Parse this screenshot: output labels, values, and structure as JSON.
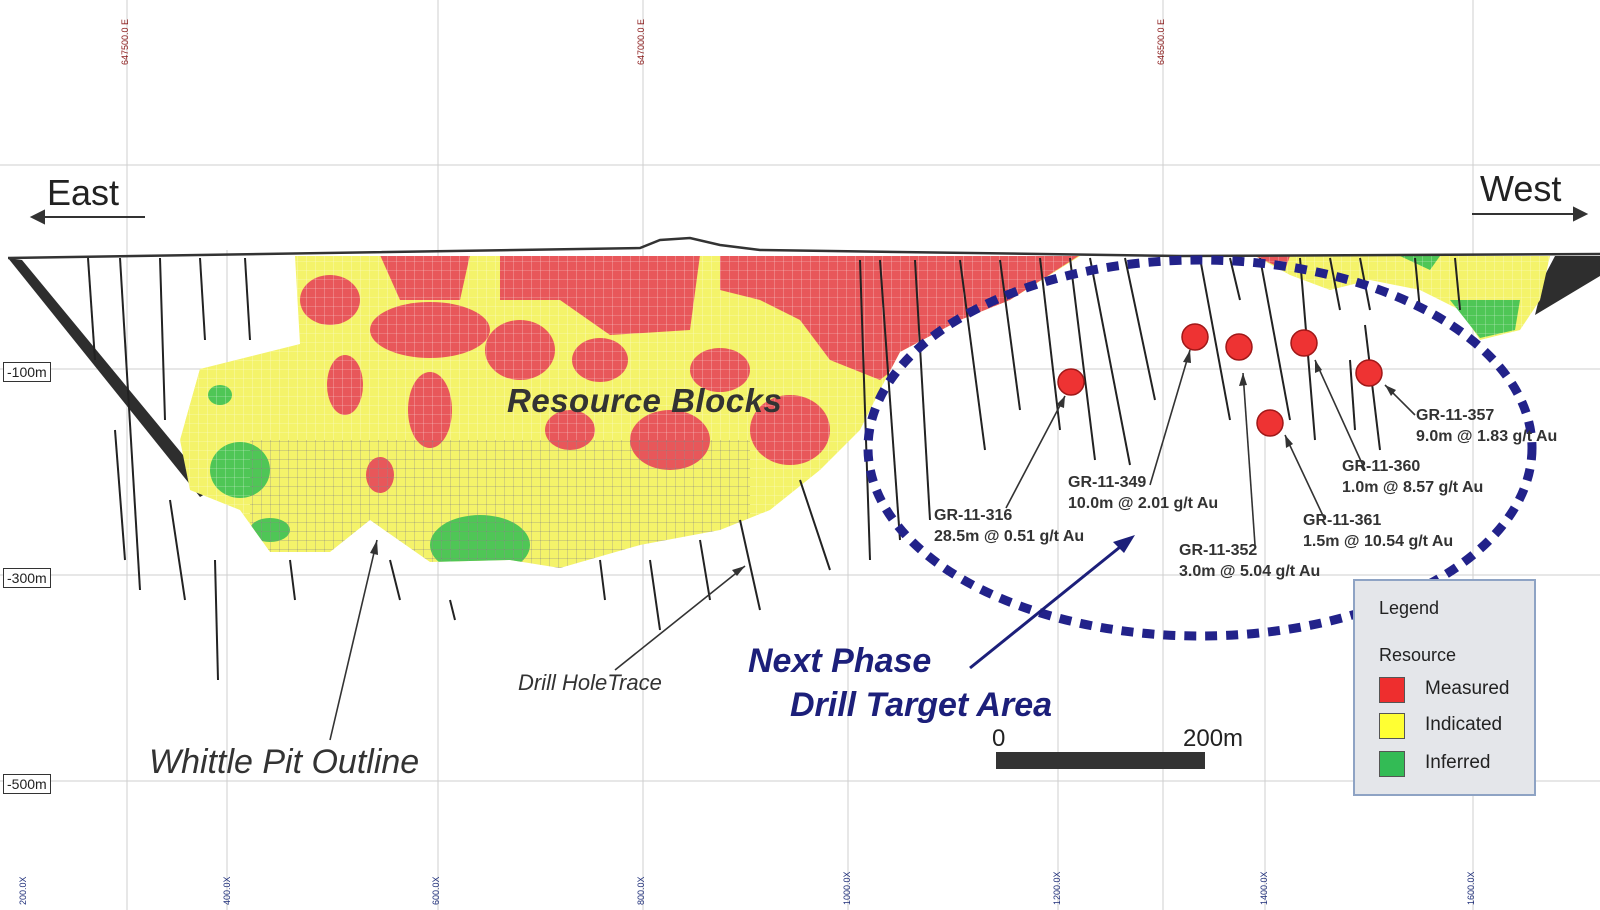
{
  "directions": {
    "east": "East",
    "west": "West"
  },
  "rl_labels": [
    "-100m",
    "-300m",
    "-500m"
  ],
  "easting_labels": [
    "647500.0 E",
    "647000.0 E",
    "646500.0 E"
  ],
  "distance_labels": [
    "200.0X",
    "400.0X",
    "600.0X",
    "800.0X",
    "1000.0X",
    "1200.0X",
    "1400.0X",
    "1600.0X"
  ],
  "titles": {
    "resource_blocks": "Resource Blocks",
    "whittle": "Whittle Pit Outline",
    "drill_trace": "Drill HoleTrace",
    "next_phase_line1": "Next Phase",
    "next_phase_line2": "Drill Target Area"
  },
  "annotations": [
    {
      "hole": "GR-11-316",
      "result": "28.5m @ 0.51 g/t Au"
    },
    {
      "hole": "GR-11-349",
      "result": "10.0m @ 2.01 g/t Au"
    },
    {
      "hole": "GR-11-352",
      "result": "3.0m @ 5.04 g/t Au"
    },
    {
      "hole": "GR-11-357",
      "result": "9.0m @ 1.83 g/t Au"
    },
    {
      "hole": "GR-11-360",
      "result": "1.0m @ 8.57 g/t Au"
    },
    {
      "hole": "GR-11-361",
      "result": "1.5m @ 10.54 g/t Au"
    }
  ],
  "scale_bar": {
    "start": "0",
    "end": "200m"
  },
  "legend": {
    "title": "Legend",
    "subtitle": "Resource",
    "items": [
      {
        "label": "Measured",
        "color": "#ee2e2e"
      },
      {
        "label": "Indicated",
        "color": "#ffff33"
      },
      {
        "label": "Inferred",
        "color": "#33bb55"
      }
    ]
  },
  "colors": {
    "measured": "#e8575a",
    "indicated": "#f4f36a",
    "inferred": "#4fc656",
    "pit": "#2b2b2b",
    "target_ellipse": "#22228a",
    "hole_marker": "#ee3333"
  }
}
